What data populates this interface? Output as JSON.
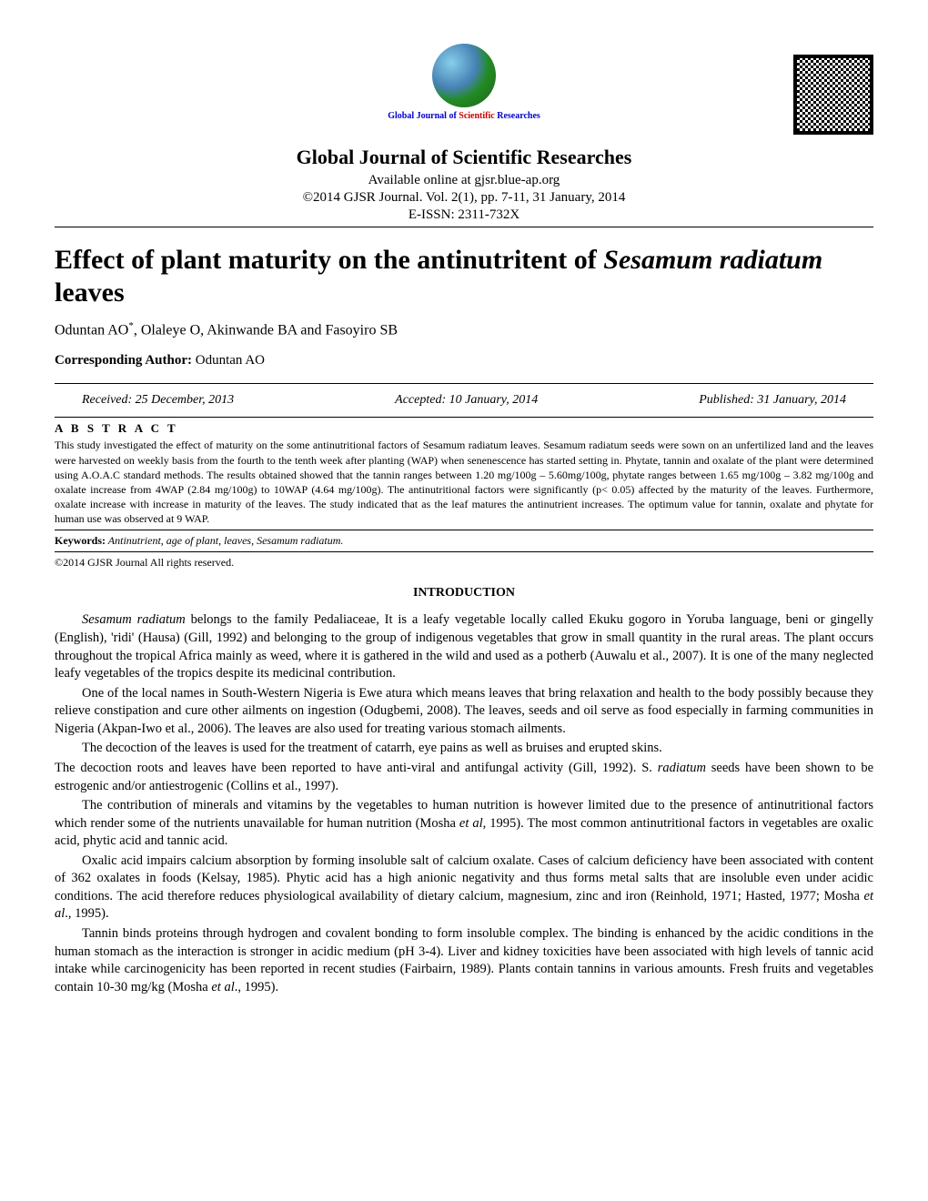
{
  "logo": {
    "text_prefix": "Global Journal of ",
    "text_highlight": "Scientific ",
    "text_suffix": "Researches"
  },
  "journal": {
    "title": "Global Journal of Scientific Researches",
    "available": "Available online at gjsr.blue-ap.org",
    "citation": "©2014 GJSR Journal. Vol. 2(1), pp. 7-11, 31 January, 2014",
    "eissn": "E-ISSN: 2311-732X"
  },
  "paper": {
    "title_pre": "Effect of plant maturity on the antinutritent of ",
    "title_species": "Sesamum radiatum",
    "title_post": " leaves",
    "authors": "Oduntan AO",
    "authors_rest": ", Olaleye O, Akinwande BA and Fasoyiro SB",
    "corresponding_label": "Corresponding Author: ",
    "corresponding_name": "Oduntan AO"
  },
  "dates": {
    "received": "Received:  25 December, 2013",
    "accepted": "Accepted: 10 January, 2014",
    "published": "Published: 31 January, 2014"
  },
  "abstract": {
    "label": "A B S T R A C T",
    "text": "This study investigated the effect of maturity on the some antinutritional factors of Sesamum radiatum leaves. Sesamum radiatum seeds were sown on an unfertilized land and the leaves were harvested on weekly basis from the fourth to the tenth week after planting (WAP) when senenescence has started setting in. Phytate, tannin and oxalate of the plant were determined using A.O.A.C standard methods. The results obtained showed that the tannin ranges between 1.20 mg/100g – 5.60mg/100g, phytate ranges between 1.65 mg/100g – 3.82 mg/100g and oxalate increase from 4WAP (2.84 mg/100g) to 10WAP (4.64 mg/100g). The antinutritional factors were significantly (p< 0.05) affected by the maturity of the leaves. Furthermore, oxalate increase with increase in maturity of the leaves. The study indicated that as the leaf matures the antinutrient increases. The optimum value for tannin, oxalate and phytate for human use was observed at 9 WAP."
  },
  "keywords": {
    "label": "Keywords:",
    "text": " Antinutrient, age of plant, leaves, Sesamum radiatum."
  },
  "copyright": "©2014 GJSR Journal All rights reserved.",
  "section_heading": "INTRODUCTION",
  "body": {
    "p1_species": "Sesamum radiatum",
    "p1": " belongs to the family Pedaliaceae, It is a leafy vegetable locally called Ekuku gogoro in Yoruba language, beni or gingelly (English), 'ridi' (Hausa) (Gill, 1992) and belonging to the group of indigenous vegetables that grow in small quantity in the rural areas. The plant occurs throughout the tropical Africa mainly as weed, where it is gathered in the wild and used as a potherb (Auwalu et al., 2007). It is one of the many neglected leafy vegetables of the tropics despite its medicinal contribution.",
    "p2": "One of the local names in South-Western Nigeria is Ewe atura which means leaves that bring relaxation and health to the body possibly because they relieve constipation and cure other ailments on ingestion (Odugbemi, 2008). The leaves, seeds and oil serve as food especially in farming communities in Nigeria (Akpan-Iwo et al., 2006). The leaves are also used for treating various stomach ailments.",
    "p3": "The decoction of the leaves is used for the treatment of catarrh, eye pains as well as bruises and erupted skins.",
    "p4a": "The decoction roots and leaves have been reported to have anti-viral and antifungal activity (Gill, 1992). S. ",
    "p4b": "radiatum",
    "p4c": " seeds have been shown to be estrogenic and/or antiestrogenic (Collins et al., 1997).",
    "p5a": "The contribution of minerals and vitamins by the vegetables to human nutrition is however limited due to the presence of antinutritional factors which render some of the nutrients unavailable for human nutrition (Mosha ",
    "p5b": "et al",
    "p5c": ", 1995). The most common antinutritional factors in vegetables are oxalic acid, phytic acid and tannic acid.",
    "p6a": "Oxalic acid impairs calcium absorption by forming insoluble salt of calcium oxalate. Cases of calcium deficiency have been associated with content of 362 oxalates in foods (Kelsay, 1985). Phytic acid has a high anionic negativity and thus forms metal salts that are insoluble even under acidic conditions. The acid therefore reduces physiological availability of dietary calcium, magnesium, zinc and iron (Reinhold, 1971; Hasted, 1977; Mosha ",
    "p6b": "et al",
    "p6c": "., 1995).",
    "p7a": "Tannin binds proteins through hydrogen and covalent bonding to form insoluble complex. The binding is enhanced by the acidic conditions in the human stomach as the interaction is stronger in acidic medium (pH 3-4). Liver and kidney toxicities have been associated with high levels of tannic acid intake while carcinogenicity has been reported in recent studies (Fairbairn, 1989). Plants contain tannins in various amounts. Fresh fruits and vegetables contain 10-30 mg/kg (Mosha ",
    "p7b": "et al",
    "p7c": "., 1995)."
  }
}
